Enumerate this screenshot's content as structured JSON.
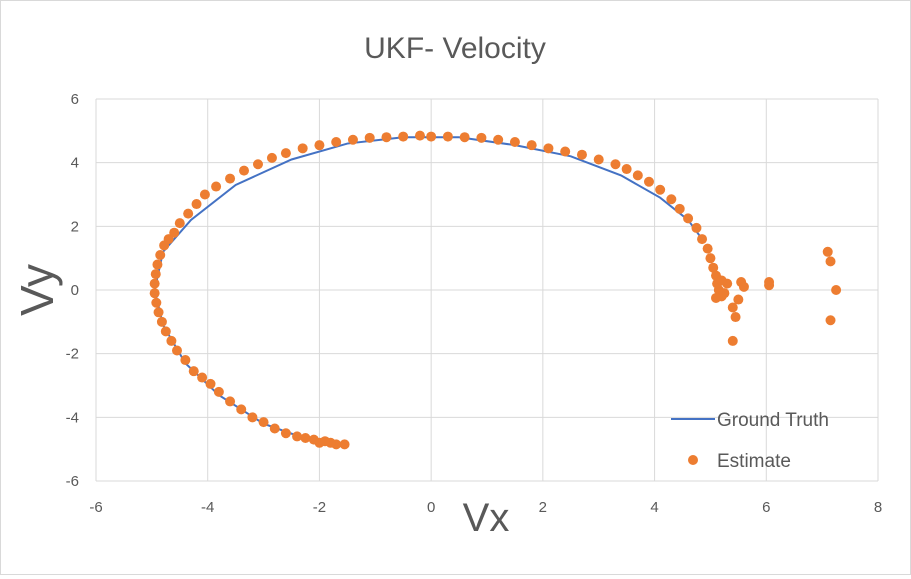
{
  "chart_data": {
    "type": "scatter",
    "title": "UKF- Velocity",
    "xlabel": "Vx",
    "ylabel": "Vy",
    "xlim": [
      -6,
      8
    ],
    "ylim": [
      -6,
      6
    ],
    "x_ticks": [
      "-6",
      "-4",
      "-2",
      "0",
      "2",
      "4",
      "6",
      "8"
    ],
    "y_ticks": [
      "6",
      "4",
      "2",
      "0",
      "-2",
      "-4",
      "-6"
    ],
    "grid": true,
    "legend_position": "bottom-right",
    "series": [
      {
        "name": "Ground Truth",
        "type": "line",
        "color": "#4472C4",
        "x": [
          -1.6,
          -2.2,
          -3.0,
          -3.8,
          -4.4,
          -4.8,
          -4.95,
          -4.8,
          -4.3,
          -3.5,
          -2.5,
          -1.5,
          -0.5,
          0.5,
          1.5,
          2.5,
          3.4,
          4.1,
          4.6,
          4.85
        ],
        "y": [
          -4.85,
          -4.7,
          -4.2,
          -3.3,
          -2.3,
          -1.1,
          0.0,
          1.2,
          2.2,
          3.3,
          4.1,
          4.6,
          4.8,
          4.8,
          4.55,
          4.2,
          3.6,
          2.9,
          2.2,
          1.6
        ]
      },
      {
        "name": "Estimate",
        "type": "scatter",
        "color": "#ED7D31",
        "x": [
          -1.55,
          -1.7,
          -1.8,
          -1.9,
          -2.0,
          -2.1,
          -2.25,
          -2.4,
          -2.6,
          -2.8,
          -3.0,
          -3.2,
          -3.4,
          -3.6,
          -3.8,
          -3.95,
          -4.1,
          -4.25,
          -4.4,
          -4.55,
          -4.65,
          -4.75,
          -4.82,
          -4.88,
          -4.92,
          -4.95,
          -4.95,
          -4.93,
          -4.9,
          -4.85,
          -4.78,
          -4.7,
          -4.6,
          -4.5,
          -4.35,
          -4.2,
          -4.05,
          -3.85,
          -3.6,
          -3.35,
          -3.1,
          -2.85,
          -2.6,
          -2.3,
          -2.0,
          -1.7,
          -1.4,
          -1.1,
          -0.8,
          -0.5,
          -0.2,
          0.0,
          0.3,
          0.6,
          0.9,
          1.2,
          1.5,
          1.8,
          2.1,
          2.4,
          2.7,
          3.0,
          3.3,
          3.5,
          3.7,
          3.9,
          4.1,
          4.3,
          4.45,
          4.6,
          4.75,
          4.85,
          4.95,
          5.0,
          5.05,
          5.1,
          5.12,
          5.15,
          5.2,
          5.25,
          5.1,
          5.3,
          5.2,
          5.4,
          5.45,
          5.55,
          5.6,
          5.5,
          5.4,
          6.05,
          6.05,
          7.1,
          7.15,
          7.25,
          7.15
        ],
        "y": [
          -4.85,
          -4.85,
          -4.8,
          -4.75,
          -4.8,
          -4.7,
          -4.65,
          -4.6,
          -4.5,
          -4.35,
          -4.15,
          -4.0,
          -3.75,
          -3.5,
          -3.2,
          -2.95,
          -2.75,
          -2.55,
          -2.2,
          -1.9,
          -1.6,
          -1.3,
          -1.0,
          -0.7,
          -0.4,
          -0.1,
          0.2,
          0.5,
          0.8,
          1.1,
          1.4,
          1.6,
          1.8,
          2.1,
          2.4,
          2.7,
          3.0,
          3.25,
          3.5,
          3.75,
          3.95,
          4.15,
          4.3,
          4.45,
          4.55,
          4.65,
          4.72,
          4.78,
          4.8,
          4.82,
          4.85,
          4.82,
          4.82,
          4.8,
          4.78,
          4.72,
          4.65,
          4.55,
          4.45,
          4.35,
          4.25,
          4.1,
          3.95,
          3.8,
          3.6,
          3.4,
          3.15,
          2.85,
          2.55,
          2.25,
          1.95,
          1.6,
          1.3,
          1.0,
          0.7,
          0.45,
          0.2,
          0.0,
          -0.2,
          -0.1,
          -0.25,
          0.2,
          0.3,
          -0.55,
          -0.85,
          0.25,
          0.1,
          -0.3,
          -1.6,
          0.25,
          0.15,
          1.2,
          0.9,
          0.0,
          -0.95
        ]
      }
    ]
  }
}
